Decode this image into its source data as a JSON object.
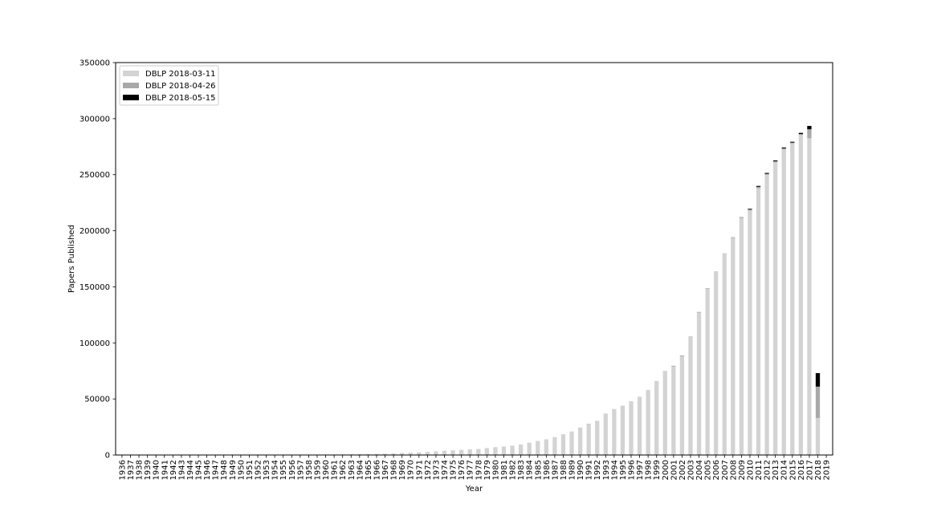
{
  "chart_data": {
    "type": "bar",
    "stacked": true,
    "xlabel": "Year",
    "ylabel": "Papers Published",
    "ylim": [
      0,
      350000
    ],
    "yticks": [
      0,
      50000,
      100000,
      150000,
      200000,
      250000,
      300000,
      350000
    ],
    "legend_position": "top-left",
    "grid": false,
    "categories": [
      "1936",
      "1937",
      "1938",
      "1939",
      "1940",
      "1941",
      "1942",
      "1943",
      "1944",
      "1945",
      "1946",
      "1947",
      "1948",
      "1949",
      "1950",
      "1951",
      "1952",
      "1953",
      "1954",
      "1955",
      "1956",
      "1957",
      "1958",
      "1959",
      "1960",
      "1961",
      "1962",
      "1963",
      "1964",
      "1965",
      "1966",
      "1967",
      "1968",
      "1969",
      "1970",
      "1971",
      "1972",
      "1973",
      "1974",
      "1975",
      "1976",
      "1977",
      "1978",
      "1979",
      "1980",
      "1981",
      "1982",
      "1983",
      "1984",
      "1985",
      "1986",
      "1987",
      "1988",
      "1989",
      "1990",
      "1991",
      "1992",
      "1993",
      "1994",
      "1995",
      "1996",
      "1997",
      "1998",
      "1999",
      "2000",
      "2001",
      "2002",
      "2003",
      "2004",
      "2005",
      "2006",
      "2007",
      "2008",
      "2009",
      "2010",
      "2011",
      "2012",
      "2013",
      "2014",
      "2015",
      "2016",
      "2017",
      "2018",
      "2019"
    ],
    "series": [
      {
        "name": "DBLP 2018-03-11",
        "color": "#d3d3d3",
        "values": [
          20,
          10,
          10,
          10,
          10,
          10,
          10,
          10,
          20,
          20,
          30,
          40,
          50,
          60,
          80,
          100,
          120,
          140,
          160,
          180,
          220,
          260,
          300,
          350,
          400,
          450,
          520,
          600,
          700,
          850,
          1000,
          1200,
          1500,
          1800,
          2100,
          2400,
          2800,
          3300,
          3800,
          4200,
          4600,
          5000,
          5400,
          6200,
          7000,
          7600,
          8300,
          9400,
          11000,
          12500,
          14000,
          16000,
          18500,
          21000,
          24500,
          27500,
          30500,
          37000,
          41000,
          44000,
          48000,
          52000,
          58000,
          66000,
          75000,
          79000,
          88000,
          106000,
          127000,
          148500,
          164000,
          180000,
          193500,
          211500,
          218000,
          238000,
          250000,
          261000,
          272500,
          278000,
          285500,
          282500,
          33000,
          0
        ]
      },
      {
        "name": "DBLP 2018-04-26",
        "color": "#a9a9a9",
        "values": [
          0,
          0,
          0,
          0,
          0,
          0,
          0,
          0,
          0,
          0,
          0,
          0,
          0,
          0,
          0,
          0,
          0,
          0,
          0,
          0,
          0,
          0,
          0,
          0,
          0,
          0,
          0,
          0,
          0,
          0,
          0,
          0,
          0,
          0,
          0,
          0,
          0,
          0,
          0,
          0,
          0,
          0,
          0,
          0,
          0,
          0,
          0,
          0,
          0,
          0,
          0,
          0,
          0,
          0,
          0,
          300,
          0,
          0,
          0,
          0,
          0,
          0,
          0,
          0,
          0,
          600,
          700,
          0,
          600,
          400,
          0,
          0,
          700,
          800,
          1000,
          1200,
          800,
          1000,
          1000,
          600,
          800,
          8000,
          28000,
          0
        ]
      },
      {
        "name": "DBLP 2018-05-15",
        "color": "#000000",
        "values": [
          0,
          0,
          0,
          0,
          0,
          0,
          0,
          0,
          0,
          0,
          0,
          0,
          0,
          0,
          0,
          0,
          0,
          0,
          0,
          0,
          0,
          0,
          0,
          0,
          0,
          0,
          0,
          0,
          0,
          0,
          0,
          0,
          0,
          0,
          0,
          0,
          0,
          0,
          0,
          0,
          0,
          0,
          0,
          0,
          0,
          0,
          0,
          0,
          0,
          0,
          0,
          0,
          0,
          0,
          0,
          0,
          0,
          0,
          0,
          0,
          0,
          0,
          0,
          0,
          0,
          0,
          0,
          0,
          0,
          0,
          0,
          0,
          0,
          0,
          600,
          800,
          800,
          800,
          800,
          800,
          1000,
          3000,
          12000,
          0
        ]
      }
    ]
  }
}
